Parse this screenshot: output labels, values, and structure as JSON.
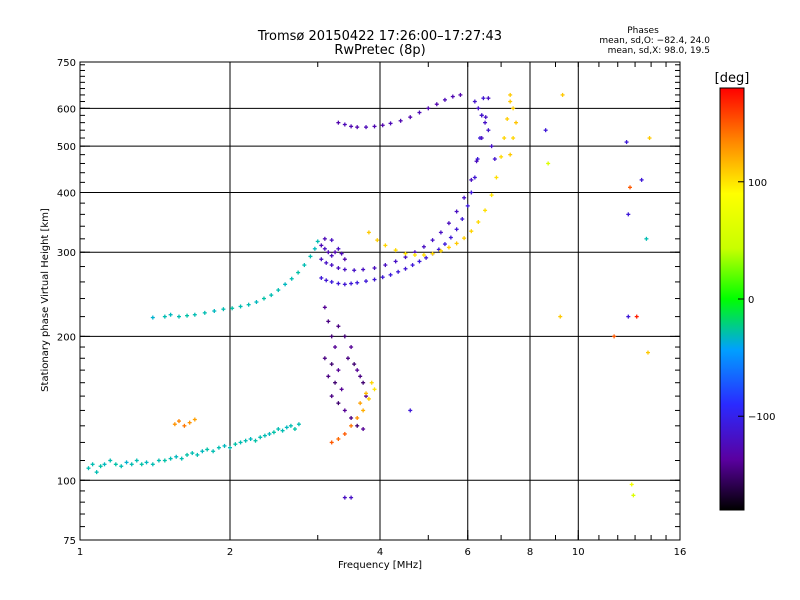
{
  "chart_data": {
    "type": "scatter",
    "title": "Tromsø 20150422 17:26:00–17:27:43",
    "subtitle": "RwPretec (8p)",
    "xlabel": "Frequency [MHz]",
    "ylabel": "Stationary phase Virtual Height [km]",
    "x_scale": "log",
    "y_scale": "log",
    "xlim": [
      1,
      16
    ],
    "ylim": [
      75,
      750
    ],
    "x_ticks": [
      1,
      2,
      4,
      6,
      8,
      10,
      16
    ],
    "x_major_grid": [
      2,
      4,
      6,
      8,
      10
    ],
    "y_ticks": [
      75,
      100,
      200,
      300,
      400,
      500,
      600,
      750
    ],
    "y_major_grid": [
      100,
      200,
      300,
      400,
      500,
      600
    ],
    "grid": true,
    "phases_box": {
      "title": "Phases",
      "line1": "mean, sd,O: −82.4, 24.0",
      "line2": "mean, sd,X:  98.0, 19.5"
    },
    "colorbar": {
      "label": "[deg]",
      "range": [
        -180,
        180
      ],
      "ticks": [
        100,
        0,
        -100
      ],
      "tick_labels": [
        "100",
        "0",
        "−100"
      ],
      "colormap": "rainbow"
    },
    "point_value": "phase in degrees",
    "series": [
      {
        "points": [
          [
            1.04,
            106,
            -30
          ],
          [
            1.06,
            108,
            -30
          ],
          [
            1.08,
            104,
            -30
          ],
          [
            1.1,
            107,
            -28
          ],
          [
            1.12,
            108,
            -32
          ],
          [
            1.15,
            110,
            -30
          ],
          [
            1.18,
            108,
            -28
          ],
          [
            1.21,
            107,
            -30
          ],
          [
            1.24,
            109,
            -35
          ],
          [
            1.27,
            108,
            -30
          ],
          [
            1.3,
            110,
            -30
          ],
          [
            1.33,
            108,
            -28
          ],
          [
            1.36,
            109,
            -32
          ],
          [
            1.4,
            108,
            -30
          ],
          [
            1.44,
            110,
            -30
          ],
          [
            1.48,
            110,
            -28
          ],
          [
            1.52,
            111,
            -30
          ],
          [
            1.56,
            112,
            -32
          ],
          [
            1.6,
            111,
            -30
          ],
          [
            1.64,
            113,
            -28
          ],
          [
            1.68,
            114,
            -30
          ],
          [
            1.72,
            113,
            -30
          ],
          [
            1.76,
            115,
            -32
          ],
          [
            1.8,
            116,
            -28
          ],
          [
            1.85,
            115,
            -30
          ],
          [
            1.9,
            117,
            -30
          ],
          [
            1.95,
            118,
            -32
          ],
          [
            2.0,
            117,
            -30
          ],
          [
            2.05,
            119,
            -28
          ],
          [
            2.1,
            120,
            -30
          ],
          [
            2.15,
            121,
            -30
          ],
          [
            2.2,
            122,
            -32
          ],
          [
            2.25,
            121,
            -28
          ],
          [
            2.3,
            123,
            -30
          ],
          [
            2.35,
            124,
            -30
          ],
          [
            2.4,
            125,
            -32
          ],
          [
            2.45,
            126,
            -28
          ],
          [
            2.5,
            128,
            -30
          ],
          [
            2.55,
            127,
            -30
          ],
          [
            2.6,
            129,
            -32
          ],
          [
            2.65,
            130,
            -30
          ],
          [
            2.7,
            128,
            -28
          ],
          [
            2.75,
            131,
            -30
          ]
        ]
      },
      {
        "points": [
          [
            1.55,
            131,
            130
          ],
          [
            1.58,
            133,
            135
          ],
          [
            1.62,
            130,
            140
          ],
          [
            1.66,
            132,
            130
          ],
          [
            1.7,
            134,
            125
          ]
        ]
      },
      {
        "points": [
          [
            1.4,
            219,
            -35
          ],
          [
            1.48,
            220,
            -30
          ],
          [
            1.52,
            222,
            -32
          ],
          [
            1.58,
            220,
            -30
          ],
          [
            1.64,
            221,
            -28
          ],
          [
            1.7,
            222,
            -30
          ],
          [
            1.78,
            224,
            -30
          ],
          [
            1.86,
            226,
            -32
          ],
          [
            1.94,
            228,
            -30
          ],
          [
            2.02,
            229,
            -28
          ],
          [
            2.1,
            231,
            -30
          ],
          [
            2.18,
            233,
            -30
          ],
          [
            2.26,
            236,
            -32
          ],
          [
            2.34,
            240,
            -28
          ],
          [
            2.42,
            244,
            -30
          ],
          [
            2.5,
            250,
            -30
          ],
          [
            2.58,
            257,
            -32
          ],
          [
            2.66,
            264,
            -30
          ],
          [
            2.74,
            272,
            -28
          ],
          [
            2.82,
            282,
            -30
          ],
          [
            2.9,
            294,
            -30
          ],
          [
            2.96,
            305,
            -32
          ],
          [
            3.0,
            316,
            -30
          ]
        ]
      },
      {
        "points": [
          [
            3.05,
            265,
            -110
          ],
          [
            3.12,
            262,
            -112
          ],
          [
            3.2,
            260,
            -108
          ],
          [
            3.3,
            258,
            -110
          ],
          [
            3.4,
            257,
            -112
          ],
          [
            3.5,
            258,
            -110
          ],
          [
            3.6,
            259,
            -108
          ],
          [
            3.75,
            261,
            -110
          ],
          [
            3.9,
            263,
            -112
          ],
          [
            4.05,
            266,
            -110
          ],
          [
            4.2,
            269,
            -108
          ],
          [
            4.35,
            273,
            -110
          ],
          [
            4.5,
            277,
            -112
          ],
          [
            4.65,
            282,
            -110
          ],
          [
            4.8,
            287,
            -108
          ],
          [
            4.95,
            292,
            -110
          ],
          [
            5.1,
            298,
            -112
          ],
          [
            5.25,
            304,
            -110
          ],
          [
            5.4,
            312,
            -108
          ],
          [
            5.55,
            322,
            -110
          ],
          [
            5.7,
            335,
            -112
          ],
          [
            5.85,
            352,
            -110
          ],
          [
            6.0,
            375,
            -108
          ],
          [
            6.1,
            400,
            -110
          ],
          [
            6.2,
            430,
            -112
          ],
          [
            6.28,
            470,
            -110
          ],
          [
            6.35,
            520,
            -108
          ],
          [
            6.4,
            580,
            -110
          ],
          [
            6.45,
            630,
            -112
          ]
        ]
      },
      {
        "points": [
          [
            3.05,
            290,
            -120
          ],
          [
            3.12,
            285,
            -118
          ],
          [
            3.2,
            282,
            -120
          ],
          [
            3.3,
            278,
            -122
          ],
          [
            3.4,
            276,
            -120
          ],
          [
            3.55,
            275,
            -118
          ],
          [
            3.7,
            276,
            -120
          ],
          [
            3.9,
            278,
            -122
          ],
          [
            4.1,
            282,
            -120
          ],
          [
            4.3,
            287,
            -118
          ],
          [
            4.5,
            293,
            -120
          ],
          [
            4.7,
            300,
            -122
          ],
          [
            4.9,
            308,
            -120
          ],
          [
            5.1,
            318,
            -118
          ],
          [
            5.3,
            330,
            -120
          ],
          [
            5.5,
            345,
            -122
          ],
          [
            5.7,
            365,
            -120
          ],
          [
            5.9,
            390,
            -118
          ],
          [
            6.1,
            425,
            -120
          ],
          [
            6.25,
            465,
            -122
          ],
          [
            6.4,
            520,
            -120
          ],
          [
            6.52,
            575,
            -118
          ],
          [
            6.6,
            630,
            -120
          ]
        ]
      },
      {
        "points": [
          [
            3.05,
            310,
            -125
          ],
          [
            3.1,
            305,
            -120
          ],
          [
            3.15,
            300,
            -128
          ],
          [
            3.2,
            295,
            -122
          ],
          [
            3.25,
            300,
            -130
          ],
          [
            3.3,
            305,
            -120
          ],
          [
            3.35,
            298,
            -125
          ],
          [
            3.4,
            290,
            -130
          ],
          [
            3.1,
            320,
            -125
          ],
          [
            3.2,
            318,
            -120
          ]
        ]
      },
      {
        "points": [
          [
            3.1,
            230,
            -140
          ],
          [
            3.15,
            215,
            -145
          ],
          [
            3.2,
            200,
            -150
          ],
          [
            3.25,
            190,
            -140
          ],
          [
            3.1,
            180,
            -145
          ],
          [
            3.2,
            175,
            -150
          ],
          [
            3.3,
            170,
            -140
          ],
          [
            3.15,
            165,
            -145
          ],
          [
            3.25,
            160,
            -150
          ],
          [
            3.35,
            155,
            -140
          ],
          [
            3.2,
            150,
            -145
          ],
          [
            3.3,
            145,
            -150
          ],
          [
            3.4,
            140,
            -140
          ],
          [
            3.5,
            135,
            -145
          ],
          [
            3.6,
            130,
            -150
          ],
          [
            3.7,
            128,
            -140
          ],
          [
            3.3,
            210,
            -145
          ],
          [
            3.4,
            200,
            -150
          ],
          [
            3.5,
            190,
            -140
          ],
          [
            3.45,
            180,
            -145
          ],
          [
            3.55,
            175,
            -150
          ],
          [
            3.6,
            170,
            -140
          ],
          [
            3.65,
            165,
            -145
          ],
          [
            3.7,
            160,
            -150
          ],
          [
            3.75,
            150,
            -140
          ]
        ]
      },
      {
        "points": [
          [
            3.2,
            120,
            150
          ],
          [
            3.3,
            122,
            145
          ],
          [
            3.4,
            125,
            150
          ],
          [
            3.5,
            130,
            140
          ],
          [
            3.6,
            135,
            130
          ],
          [
            3.7,
            140,
            120
          ],
          [
            3.8,
            148,
            110
          ],
          [
            3.9,
            155,
            100
          ],
          [
            3.85,
            160,
            105
          ],
          [
            3.75,
            152,
            115
          ],
          [
            3.65,
            145,
            125
          ]
        ]
      },
      {
        "points": [
          [
            3.8,
            330,
            110
          ],
          [
            3.95,
            318,
            108
          ],
          [
            4.1,
            310,
            106
          ],
          [
            4.3,
            303,
            104
          ],
          [
            4.5,
            298,
            102
          ],
          [
            4.7,
            296,
            100
          ],
          [
            4.9,
            296,
            102
          ],
          [
            5.1,
            298,
            104
          ],
          [
            5.3,
            302,
            106
          ],
          [
            5.5,
            307,
            108
          ],
          [
            5.7,
            313,
            110
          ],
          [
            5.9,
            321,
            108
          ],
          [
            6.1,
            332,
            106
          ],
          [
            6.3,
            347,
            104
          ],
          [
            6.5,
            367,
            102
          ],
          [
            6.7,
            395,
            100
          ],
          [
            6.85,
            430,
            102
          ],
          [
            7.0,
            475,
            104
          ],
          [
            7.1,
            520,
            106
          ],
          [
            7.2,
            570,
            108
          ],
          [
            7.3,
            620,
            110
          ]
        ]
      },
      {
        "points": [
          [
            3.3,
            560,
            -130
          ],
          [
            3.4,
            555,
            -125
          ],
          [
            3.5,
            550,
            -128
          ],
          [
            3.6,
            548,
            -130
          ],
          [
            3.75,
            548,
            -125
          ],
          [
            3.9,
            550,
            -128
          ],
          [
            4.05,
            553,
            -130
          ],
          [
            4.2,
            558,
            -125
          ],
          [
            4.4,
            565,
            -128
          ],
          [
            4.6,
            575,
            -130
          ],
          [
            4.8,
            588,
            -125
          ],
          [
            5.0,
            600,
            -128
          ],
          [
            5.2,
            612,
            -130
          ],
          [
            5.4,
            625,
            -125
          ],
          [
            5.6,
            635,
            -128
          ],
          [
            5.8,
            640,
            -130
          ]
        ]
      },
      {
        "points": [
          [
            6.2,
            620,
            -115
          ],
          [
            6.3,
            600,
            -118
          ],
          [
            6.4,
            580,
            -115
          ],
          [
            6.5,
            560,
            -118
          ],
          [
            6.6,
            540,
            -115
          ],
          [
            6.7,
            500,
            -118
          ],
          [
            6.8,
            470,
            -115
          ]
        ]
      },
      {
        "points": [
          [
            7.3,
            640,
            110
          ],
          [
            7.4,
            600,
            108
          ],
          [
            7.5,
            560,
            112
          ],
          [
            7.4,
            520,
            106
          ],
          [
            7.3,
            480,
            110
          ]
        ]
      },
      {
        "points": [
          [
            3.4,
            92,
            -120
          ],
          [
            3.5,
            92,
            -118
          ],
          [
            4.6,
            140,
            -110
          ],
          [
            8.6,
            540,
            -110
          ],
          [
            8.7,
            460,
            60
          ],
          [
            9.3,
            640,
            110
          ],
          [
            9.2,
            220,
            110
          ],
          [
            11.8,
            200,
            150
          ],
          [
            12.5,
            510,
            -110
          ],
          [
            12.7,
            410,
            150
          ],
          [
            13.4,
            425,
            -110
          ],
          [
            12.6,
            360,
            -110
          ],
          [
            12.6,
            220,
            -110
          ],
          [
            13.1,
            220,
            170
          ],
          [
            13.9,
            520,
            110
          ],
          [
            13.7,
            320,
            -30
          ],
          [
            13.8,
            185,
            110
          ],
          [
            12.8,
            98,
            80
          ],
          [
            12.9,
            93,
            60
          ]
        ]
      }
    ]
  }
}
